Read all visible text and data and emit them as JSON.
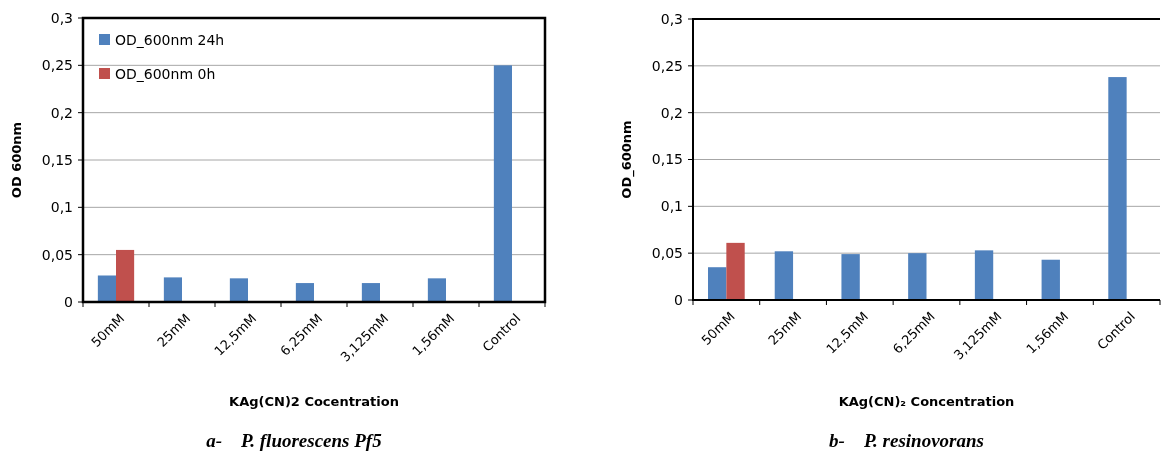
{
  "chart_data": [
    {
      "type": "bar",
      "title": "a-    P. fluorescens Pf5",
      "xlabel": "KAg(CN)2 Cocentration",
      "ylabel": "OD 600nm",
      "categories": [
        "50mM",
        "25mM",
        "12,5mM",
        "6,25mM",
        "3,125mM",
        "1,56mM",
        "Control"
      ],
      "series": [
        {
          "name": "OD_600nm 24h",
          "color": "#4f81bd",
          "values": [
            0.028,
            0.026,
            0.025,
            0.02,
            0.02,
            0.025,
            0.25
          ]
        },
        {
          "name": "OD_600nm 0h",
          "color": "#c0504d",
          "values": [
            0.055,
            null,
            null,
            null,
            null,
            null,
            null
          ]
        }
      ],
      "ylim": [
        0,
        0.3
      ],
      "yticks": [
        {
          "value": 0,
          "label": "0"
        },
        {
          "value": 0.05,
          "label": "0,05"
        },
        {
          "value": 0.1,
          "label": "0,1"
        },
        {
          "value": 0.15,
          "label": "0,15"
        },
        {
          "value": 0.2,
          "label": "0,2"
        },
        {
          "value": 0.25,
          "label": "0,25"
        },
        {
          "value": 0.3,
          "label": "0,3"
        }
      ],
      "grid": "y",
      "legend": "top left"
    },
    {
      "type": "bar",
      "title": "b-    P. resinovorans",
      "xlabel": "KAg(CN)₂ Concentration",
      "ylabel": "OD_600nm",
      "categories": [
        "50mM",
        "25mM",
        "12,5mM",
        "6,25mM",
        "3,125mM",
        "1,56mM",
        "Control"
      ],
      "series": [
        {
          "color": "#4f81bd",
          "values": [
            0.035,
            0.052,
            0.049,
            0.05,
            0.053,
            0.043,
            0.238
          ]
        },
        {
          "color": "#c0504d",
          "values": [
            0.061,
            null,
            null,
            null,
            null,
            null,
            null
          ]
        }
      ],
      "ylim": [
        0,
        0.3
      ],
      "yticks": [
        {
          "value": 0,
          "label": "0"
        },
        {
          "value": 0.05,
          "label": "0,05"
        },
        {
          "value": 0.1,
          "label": "0,1"
        },
        {
          "value": 0.15,
          "label": "0,15"
        },
        {
          "value": 0.2,
          "label": "0,2"
        },
        {
          "value": 0.25,
          "label": "0,25"
        },
        {
          "value": 0.3,
          "label": "0,3"
        }
      ],
      "grid": "y",
      "legend": false
    }
  ]
}
